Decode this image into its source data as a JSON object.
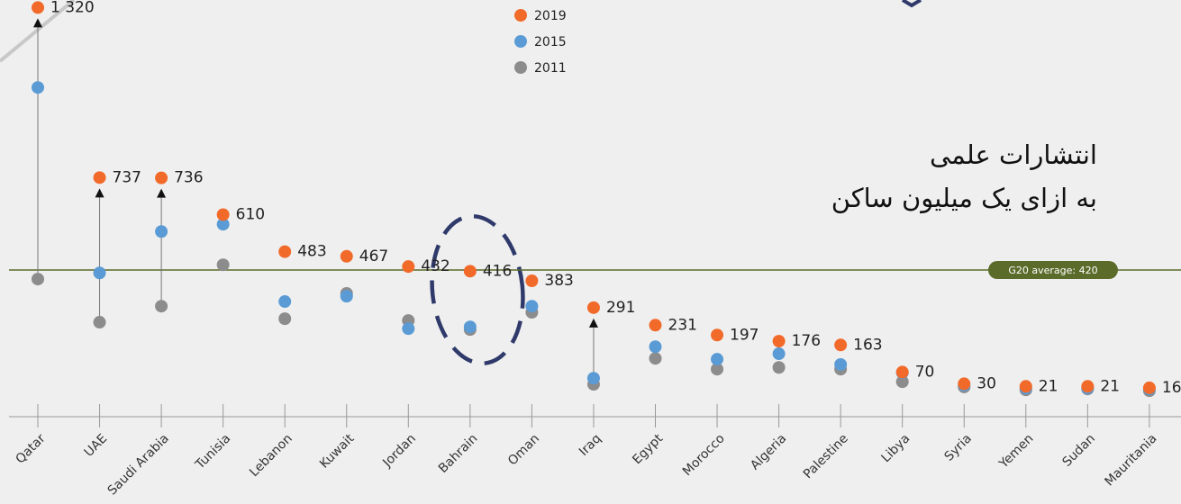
{
  "chart_data": {
    "type": "dot",
    "categories": [
      "Qatar",
      "UAE",
      "Saudi Arabia",
      "Tunisia",
      "Lebanon",
      "Kuwait",
      "Jordan",
      "Bahrain",
      "Oman",
      "Iraq",
      "Egypt",
      "Morocco",
      "Algeria",
      "Palestine",
      "Libya",
      "Syria",
      "Yemen",
      "Sudan",
      "Mauritania"
    ],
    "series": [
      {
        "name": "2011",
        "color": "#8c8c8c",
        "values": [
          389,
          241,
          296,
          438,
          253,
          340,
          247,
          216,
          275,
          28,
          117,
          80,
          86,
          80,
          37,
          19,
          9,
          12,
          6
        ]
      },
      {
        "name": "2015",
        "color": "#5b9bd5",
        "values": [
          1046,
          410,
          552,
          577,
          312,
          330,
          219,
          225,
          296,
          49,
          157,
          114,
          133,
          96,
          68,
          25,
          15,
          15,
          12
        ]
      },
      {
        "name": "2019",
        "color": "#f26a2a",
        "values": [
          1320,
          737,
          736,
          610,
          483,
          467,
          432,
          416,
          383,
          291,
          231,
          197,
          176,
          163,
          70,
          30,
          21,
          21,
          16
        ],
        "value_labels": [
          "1 320",
          "737",
          "736",
          "610",
          "483",
          "467",
          "432",
          "416",
          "383",
          "291",
          "231",
          "197",
          "176",
          "163",
          "70",
          "30",
          "21",
          "21",
          "16"
        ]
      }
    ],
    "ylim": [
      -83,
      1346
    ],
    "reference_line": {
      "value": 420,
      "label": "G20 average: 420",
      "color": "#5a6b2a"
    },
    "annotation": [
      "انتشارات علمی",
      "به ازای یک میلیون ساکن"
    ]
  }
}
